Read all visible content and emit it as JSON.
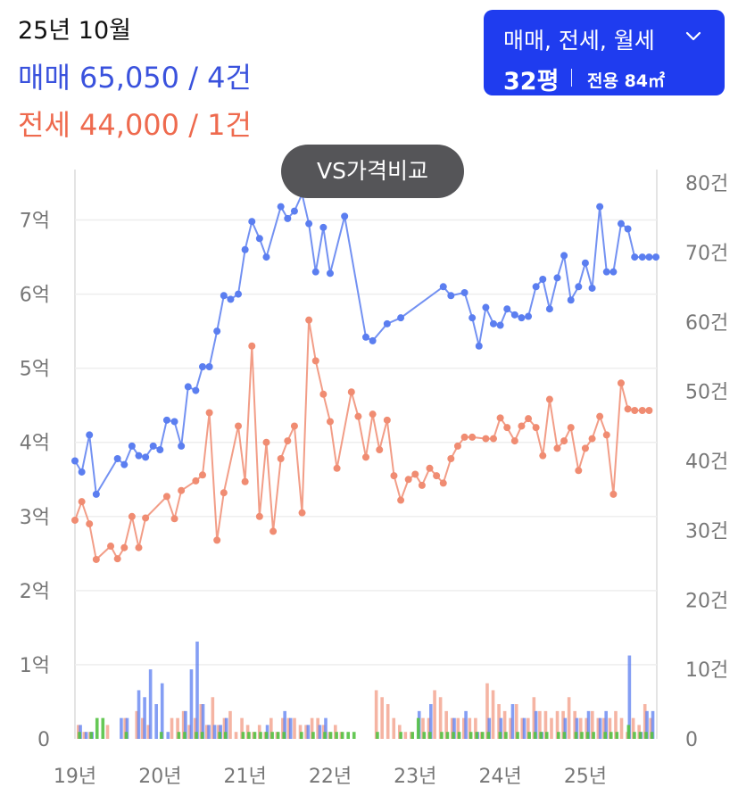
{
  "header": {
    "date": "25년 10월",
    "sale_summary": "매매 65,050 / 4건",
    "jeonse_summary": "전세 44,000 / 1건"
  },
  "filter": {
    "types_label": "매매, 전세, 월세",
    "chevron_icon": "chevron-down-icon",
    "size_label": "32평",
    "area_label": "전용 84㎡"
  },
  "compare_button": {
    "label": "VS가격비교"
  },
  "colors": {
    "sale": "#5b7ef0",
    "jeonse": "#f08c72",
    "monthly": "#55c244",
    "accent": "#1f3cef",
    "grid": "#eeeeee"
  },
  "chart_data": {
    "type": "line",
    "left_axis": {
      "ticks": [
        "0",
        "1억",
        "2억",
        "3억",
        "4억",
        "5억",
        "6억",
        "7억"
      ],
      "range": [
        0,
        7.5
      ]
    },
    "right_axis": {
      "ticks": [
        "0",
        "10건",
        "20건",
        "30건",
        "40건",
        "50건",
        "60건",
        "70건",
        "80건"
      ],
      "range": [
        0,
        80
      ]
    },
    "x_axis": {
      "ticks": [
        "19년",
        "20년",
        "21년",
        "22년",
        "23년",
        "24년",
        "25년"
      ],
      "range": [
        2019.0,
        2025.84
      ]
    },
    "grid": true,
    "series": [
      {
        "key": "sale",
        "x": [
          2019.0,
          2019.08,
          2019.17,
          2019.25,
          2019.5,
          2019.58,
          2019.67,
          2019.75,
          2019.83,
          2019.92,
          2020.0,
          2020.08,
          2020.17,
          2020.25,
          2020.33,
          2020.42,
          2020.5,
          2020.58,
          2020.67,
          2020.75,
          2020.83,
          2020.92,
          2021.0,
          2021.08,
          2021.17,
          2021.25,
          2021.42,
          2021.5,
          2021.58,
          2021.67,
          2021.75,
          2021.83,
          2021.92,
          2022.0,
          2022.17,
          2022.42,
          2022.5,
          2022.67,
          2022.83,
          2023.33,
          2023.42,
          2023.58,
          2023.67,
          2023.75,
          2023.83,
          2023.92,
          2024.0,
          2024.08,
          2024.17,
          2024.25,
          2024.33,
          2024.42,
          2024.5,
          2024.58,
          2024.67,
          2024.75,
          2024.83,
          2024.92,
          2025.0,
          2025.08,
          2025.17,
          2025.25,
          2025.33,
          2025.42,
          2025.5,
          2025.58,
          2025.67,
          2025.75,
          2025.83
        ],
        "values": [
          3.75,
          3.6,
          4.1,
          3.3,
          3.78,
          3.7,
          3.95,
          3.82,
          3.8,
          3.95,
          3.9,
          4.3,
          4.28,
          3.95,
          4.75,
          4.7,
          5.02,
          5.02,
          5.5,
          5.98,
          5.93,
          6.0,
          6.6,
          6.98,
          6.75,
          6.5,
          7.18,
          7.02,
          7.12,
          7.35,
          6.95,
          6.3,
          6.9,
          6.28,
          7.05,
          5.42,
          5.37,
          5.6,
          5.68,
          6.1,
          5.98,
          6.02,
          5.68,
          5.3,
          5.82,
          5.6,
          5.58,
          5.8,
          5.72,
          5.68,
          5.7,
          6.1,
          6.2,
          5.8,
          6.22,
          6.52,
          5.92,
          6.1,
          6.42,
          6.08,
          7.18,
          6.3,
          6.3,
          6.95,
          6.88,
          6.5,
          6.5,
          6.5,
          6.5
        ]
      },
      {
        "key": "jeonse",
        "x": [
          2019.0,
          2019.08,
          2019.17,
          2019.25,
          2019.42,
          2019.5,
          2019.58,
          2019.67,
          2019.75,
          2019.83,
          2020.08,
          2020.17,
          2020.25,
          2020.42,
          2020.5,
          2020.58,
          2020.67,
          2020.75,
          2020.92,
          2021.0,
          2021.08,
          2021.17,
          2021.25,
          2021.33,
          2021.42,
          2021.5,
          2021.58,
          2021.67,
          2021.75,
          2021.83,
          2021.92,
          2022.0,
          2022.08,
          2022.25,
          2022.33,
          2022.42,
          2022.5,
          2022.58,
          2022.67,
          2022.75,
          2022.83,
          2022.92,
          2023.0,
          2023.08,
          2023.17,
          2023.25,
          2023.33,
          2023.42,
          2023.5,
          2023.58,
          2023.67,
          2023.83,
          2023.92,
          2024.0,
          2024.08,
          2024.17,
          2024.25,
          2024.33,
          2024.42,
          2024.5,
          2024.58,
          2024.67,
          2024.75,
          2024.83,
          2024.92,
          2025.0,
          2025.08,
          2025.17,
          2025.25,
          2025.33,
          2025.42,
          2025.5,
          2025.58,
          2025.67,
          2025.75
        ],
        "values": [
          2.95,
          3.2,
          2.9,
          2.42,
          2.6,
          2.43,
          2.58,
          3.0,
          2.58,
          2.98,
          3.27,
          2.97,
          3.35,
          3.48,
          3.56,
          4.4,
          2.68,
          3.32,
          4.22,
          3.47,
          5.3,
          3.0,
          4.0,
          2.8,
          3.78,
          4.02,
          4.22,
          3.05,
          5.65,
          5.1,
          4.65,
          4.28,
          3.65,
          4.68,
          4.35,
          3.8,
          4.38,
          3.9,
          4.3,
          3.55,
          3.22,
          3.5,
          3.57,
          3.42,
          3.65,
          3.55,
          3.45,
          3.78,
          3.95,
          4.07,
          4.07,
          4.05,
          4.05,
          4.33,
          4.2,
          4.02,
          4.22,
          4.32,
          4.2,
          3.82,
          4.58,
          3.92,
          4.02,
          4.2,
          3.62,
          3.92,
          4.05,
          4.35,
          4.1,
          3.3,
          4.8,
          4.45,
          4.43,
          4.43,
          4.43
        ]
      }
    ],
    "volume": {
      "sale": [
        2,
        1,
        1,
        0,
        0,
        0,
        0,
        3,
        3,
        0,
        7,
        6,
        10,
        5,
        8,
        1,
        0,
        0,
        4,
        10,
        14,
        5,
        2,
        2,
        2,
        3,
        0,
        0,
        0,
        0,
        0,
        0,
        2,
        0,
        0,
        4,
        3,
        0,
        0,
        2,
        0,
        2,
        3,
        0,
        0,
        0,
        0,
        0,
        0,
        0,
        0,
        0,
        0,
        0,
        0,
        0,
        0,
        0,
        4,
        0,
        5,
        0,
        0,
        0,
        3,
        0,
        4,
        0,
        1,
        0,
        3,
        0,
        3,
        0,
        5,
        0,
        3,
        0,
        4,
        1,
        0,
        0,
        0,
        3,
        0,
        3,
        0,
        4,
        0,
        3,
        4,
        0,
        0,
        0,
        12,
        0,
        1,
        4,
        4
      ],
      "jeonse": [
        2,
        1,
        1,
        0,
        0,
        2,
        0,
        0,
        3,
        0,
        4,
        3,
        2,
        0,
        0,
        0,
        3,
        3,
        4,
        2,
        3,
        5,
        2,
        6,
        2,
        3,
        4,
        1,
        3,
        2,
        1,
        2,
        1,
        3,
        1,
        3,
        3,
        3,
        2,
        2,
        3,
        3,
        2,
        1,
        2,
        1,
        0,
        0,
        0,
        0,
        0,
        7,
        6,
        5,
        3,
        2,
        1,
        1,
        0,
        3,
        3,
        7,
        6,
        4,
        3,
        3,
        3,
        3,
        3,
        1,
        8,
        7,
        5,
        4,
        3,
        5,
        3,
        3,
        6,
        4,
        4,
        3,
        4,
        4,
        6,
        4,
        3,
        3,
        4,
        3,
        3,
        3,
        4,
        3,
        1,
        3,
        2,
        5,
        3
      ],
      "monthly": [
        1,
        0,
        1,
        3,
        3,
        0,
        0,
        0,
        1,
        0,
        0,
        0,
        0,
        0,
        1,
        0,
        0,
        1,
        1,
        0,
        1,
        1,
        0,
        0,
        1,
        1,
        0,
        0,
        1,
        1,
        1,
        1,
        1,
        1,
        1,
        1,
        0,
        0,
        1,
        0,
        1,
        0,
        1,
        1,
        1,
        1,
        1,
        1,
        0,
        0,
        0,
        1,
        0,
        0,
        0,
        1,
        0,
        1,
        3,
        1,
        1,
        0,
        1,
        1,
        1,
        1,
        0,
        1,
        1,
        1,
        1,
        0,
        1,
        1,
        0,
        1,
        0,
        1,
        1,
        1,
        1,
        0,
        1,
        1,
        0,
        1,
        1,
        1,
        1,
        0,
        1,
        1,
        1,
        0,
        2,
        1,
        1,
        1,
        1
      ]
    }
  }
}
